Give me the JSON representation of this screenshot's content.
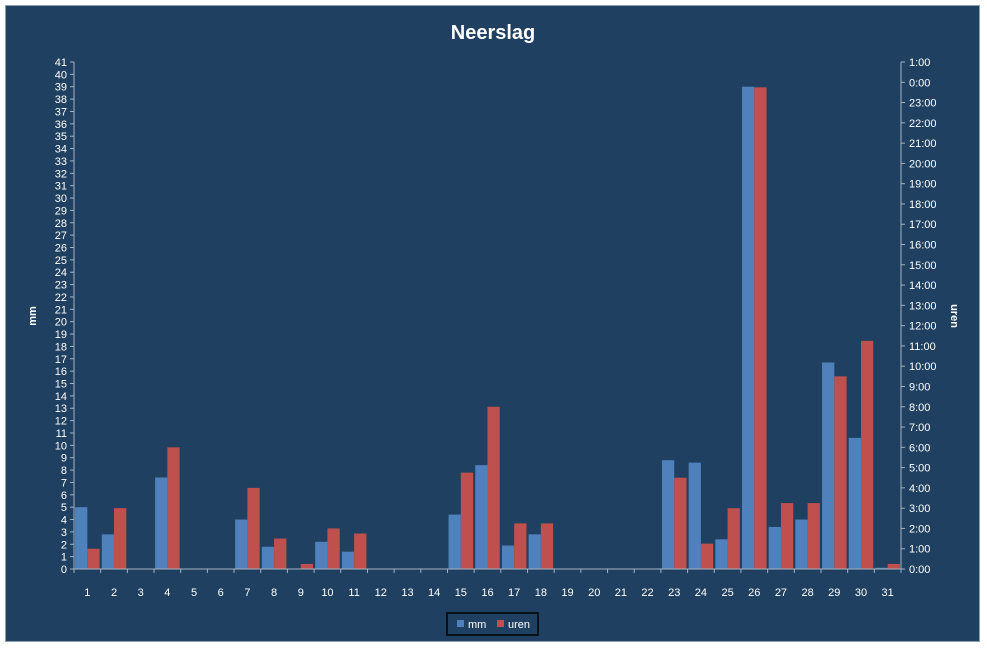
{
  "chart_data": {
    "type": "bar",
    "title": "Neerslag",
    "ylabel": "mm",
    "y2label": "uren",
    "ylim": [
      0,
      41
    ],
    "y2lim_hours": [
      0,
      25
    ],
    "categories": [
      "1",
      "2",
      "3",
      "4",
      "5",
      "6",
      "7",
      "8",
      "9",
      "10",
      "11",
      "12",
      "13",
      "14",
      "15",
      "16",
      "17",
      "18",
      "19",
      "20",
      "21",
      "22",
      "23",
      "24",
      "25",
      "26",
      "27",
      "28",
      "29",
      "30",
      "31"
    ],
    "y_ticks": [
      "0",
      "1",
      "2",
      "3",
      "4",
      "5",
      "6",
      "7",
      "8",
      "9",
      "10",
      "11",
      "12",
      "13",
      "14",
      "15",
      "16",
      "17",
      "18",
      "19",
      "20",
      "21",
      "22",
      "23",
      "24",
      "25",
      "26",
      "27",
      "28",
      "29",
      "30",
      "31",
      "32",
      "33",
      "34",
      "35",
      "36",
      "37",
      "38",
      "39",
      "40",
      "41"
    ],
    "y2_ticks": [
      "0:00",
      "1:00",
      "2:00",
      "3:00",
      "4:00",
      "5:00",
      "6:00",
      "7:00",
      "8:00",
      "9:00",
      "10:00",
      "11:00",
      "12:00",
      "13:00",
      "14:00",
      "15:00",
      "16:00",
      "17:00",
      "18:00",
      "19:00",
      "20:00",
      "21:00",
      "22:00",
      "23:00",
      "0:00",
      "1:00"
    ],
    "series": [
      {
        "name": "mm",
        "axis": "left",
        "color": "#4f81bd",
        "values": [
          5.0,
          2.8,
          0,
          7.4,
          0,
          0,
          4.0,
          1.8,
          0,
          2.2,
          1.4,
          0,
          0,
          0,
          4.4,
          8.4,
          1.9,
          2.8,
          0,
          0,
          0,
          0,
          8.8,
          8.6,
          2.4,
          39.0,
          3.4,
          4.0,
          16.7,
          10.6,
          0.1
        ]
      },
      {
        "name": "uren",
        "axis": "right",
        "color": "#c0504d",
        "values": [
          1.0,
          3.0,
          0,
          6.0,
          0,
          0,
          4.0,
          1.5,
          0.25,
          2.0,
          1.75,
          0,
          0,
          0,
          4.75,
          8.0,
          2.25,
          2.25,
          0,
          0,
          0,
          0,
          4.5,
          1.25,
          3.0,
          23.75,
          3.25,
          3.25,
          9.5,
          11.25,
          0.25
        ]
      }
    ],
    "legend": {
      "position": "bottom"
    },
    "grid": false
  },
  "colors": {
    "background": "#1f4060",
    "axis": "#a6b4c2"
  }
}
